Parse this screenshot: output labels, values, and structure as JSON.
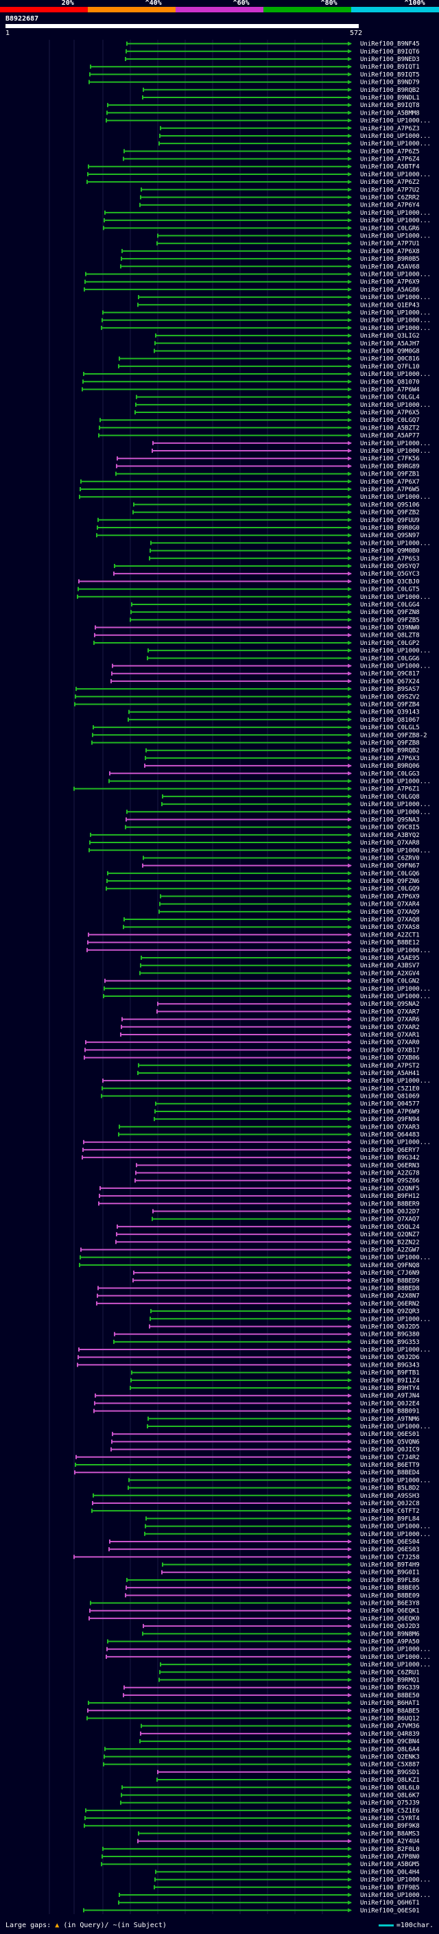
{
  "legend": {
    "labels": [
      "20%",
      "^40%",
      "^60%",
      "^80%",
      "^100%"
    ],
    "colors": [
      "#ff0000",
      "#ff8800",
      "#cc33cc",
      "#00aa00",
      "#00c8e0"
    ]
  },
  "query": {
    "id": "B8922687",
    "start": "1",
    "end": "572"
  },
  "hits": [
    {
      "label": "UniRef100_B9NF45",
      "color": "green"
    },
    {
      "label": "UniRef100_B9IQT6",
      "color": "green"
    },
    {
      "label": "UniRef100_B9NED3",
      "color": "green"
    },
    {
      "label": "UniRef100_B9IQT1",
      "color": "green"
    },
    {
      "label": "UniRef100_B9IQT5",
      "color": "green"
    },
    {
      "label": "UniRef100_B9ND79",
      "color": "green"
    },
    {
      "label": "UniRef100_B9RQB2",
      "color": "green"
    },
    {
      "label": "UniRef100_B9NDL1",
      "color": "green"
    },
    {
      "label": "UniRef100_B9IQT8",
      "color": "green"
    },
    {
      "label": "UniRef100_A5BMM8",
      "color": "green"
    },
    {
      "label": "UniRef100_UP1000...",
      "color": "green"
    },
    {
      "label": "UniRef100_A7P6Z3",
      "color": "green"
    },
    {
      "label": "UniRef100_UP1000...",
      "color": "green"
    },
    {
      "label": "UniRef100_UP1000...",
      "color": "green"
    },
    {
      "label": "UniRef100_A7P6Z5",
      "color": "green"
    },
    {
      "label": "UniRef100_A7P6Z4",
      "color": "green"
    },
    {
      "label": "UniRef100_A5BTF4",
      "color": "green"
    },
    {
      "label": "UniRef100_UP1000...",
      "color": "green"
    },
    {
      "label": "UniRef100_A7P6Z2",
      "color": "green"
    },
    {
      "label": "UniRef100_A7P7U2",
      "color": "green"
    },
    {
      "label": "UniRef100_C6ZRR2",
      "color": "green"
    },
    {
      "label": "UniRef100_A7P6Y4",
      "color": "green"
    },
    {
      "label": "UniRef100_UP1000...",
      "color": "green"
    },
    {
      "label": "UniRef100_UP1000...",
      "color": "green"
    },
    {
      "label": "UniRef100_C0LGR6",
      "color": "green"
    },
    {
      "label": "UniRef100_UP1000...",
      "color": "green"
    },
    {
      "label": "UniRef100_A7P7U1",
      "color": "green"
    },
    {
      "label": "UniRef100_A7P6X8",
      "color": "green"
    },
    {
      "label": "UniRef100_B9R0B5",
      "color": "green"
    },
    {
      "label": "UniRef100_A5AV68",
      "color": "green"
    },
    {
      "label": "UniRef100_UP1000...",
      "color": "green"
    },
    {
      "label": "UniRef100_A7P6X9",
      "color": "green"
    },
    {
      "label": "UniRef100_A5AG86",
      "color": "green"
    },
    {
      "label": "UniRef100_UP1000...",
      "color": "green"
    },
    {
      "label": "UniRef100_Q1EP43",
      "color": "green"
    },
    {
      "label": "UniRef100_UP1000...",
      "color": "green"
    },
    {
      "label": "UniRef100_UP1000...",
      "color": "green"
    },
    {
      "label": "UniRef100_UP1000...",
      "color": "green"
    },
    {
      "label": "UniRef100_Q3LIG2",
      "color": "green"
    },
    {
      "label": "UniRef100_A5AJH7",
      "color": "green"
    },
    {
      "label": "UniRef100_Q9M0G8",
      "color": "green"
    },
    {
      "label": "UniRef100_Q0C816",
      "color": "green"
    },
    {
      "label": "UniRef100_Q7FL10",
      "color": "green"
    },
    {
      "label": "UniRef100_UP1000...",
      "color": "green"
    },
    {
      "label": "UniRef100_Q81070",
      "color": "green"
    },
    {
      "label": "UniRef100_A7P6W4",
      "color": "green"
    },
    {
      "label": "UniRef100_C0LGL4",
      "color": "green"
    },
    {
      "label": "UniRef100_UP1000...",
      "color": "green"
    },
    {
      "label": "UniRef100_A7P6X5",
      "color": "green"
    },
    {
      "label": "UniRef100_C0LGQ7",
      "color": "green"
    },
    {
      "label": "UniRef100_A5BZT2",
      "color": "green"
    },
    {
      "label": "UniRef100_A5AP77",
      "color": "green"
    },
    {
      "label": "UniRef100_UP1000...",
      "color": "magenta"
    },
    {
      "label": "UniRef100_UP1000...",
      "color": "magenta"
    },
    {
      "label": "UniRef100_C7FK56",
      "color": "magenta"
    },
    {
      "label": "UniRef100_B9RG89",
      "color": "magenta"
    },
    {
      "label": "UniRef100_Q9FZB1",
      "color": "green"
    },
    {
      "label": "UniRef100_A7P6X7",
      "color": "green"
    },
    {
      "label": "UniRef100_A7P6W5",
      "color": "green"
    },
    {
      "label": "UniRef100_UP1000...",
      "color": "green"
    },
    {
      "label": "UniRef100_Q9S106",
      "color": "green"
    },
    {
      "label": "UniRef100_Q9FZB2",
      "color": "green"
    },
    {
      "label": "UniRef100_Q9FUU9",
      "color": "green"
    },
    {
      "label": "UniRef100_B9R0G0",
      "color": "green"
    },
    {
      "label": "UniRef100_Q9SN97",
      "color": "green"
    },
    {
      "label": "UniRef100_UP1000...",
      "color": "green"
    },
    {
      "label": "UniRef100_Q9M0B0",
      "color": "green"
    },
    {
      "label": "UniRef100_A7P6S3",
      "color": "green"
    },
    {
      "label": "UniRef100_Q9SYQ7",
      "color": "green"
    },
    {
      "label": "UniRef100_Q5GYC3",
      "color": "magenta"
    },
    {
      "label": "UniRef100_Q3CBJ0",
      "color": "magenta"
    },
    {
      "label": "UniRef100_C0LGT5",
      "color": "green"
    },
    {
      "label": "UniRef100_UP1000...",
      "color": "green"
    },
    {
      "label": "UniRef100_C0LGG4",
      "color": "green"
    },
    {
      "label": "UniRef100_Q9FZN8",
      "color": "green"
    },
    {
      "label": "UniRef100_Q9FZB5",
      "color": "green"
    },
    {
      "label": "UniRef100_Q39NW0",
      "color": "magenta"
    },
    {
      "label": "UniRef100_Q8LZT8",
      "color": "magenta"
    },
    {
      "label": "UniRef100_C0LGP2",
      "color": "green"
    },
    {
      "label": "UniRef100_UP1000...",
      "color": "green"
    },
    {
      "label": "UniRef100_C0LGG6",
      "color": "green"
    },
    {
      "label": "UniRef100_UP1000...",
      "color": "magenta"
    },
    {
      "label": "UniRef100_Q9C817",
      "color": "magenta"
    },
    {
      "label": "UniRef100_Q67X24",
      "color": "magenta"
    },
    {
      "label": "UniRef100_B9SAS7",
      "color": "green"
    },
    {
      "label": "UniRef100_Q9SZV2",
      "color": "green"
    },
    {
      "label": "UniRef100_Q9FZB4",
      "color": "green"
    },
    {
      "label": "UniRef100_Q39143",
      "color": "green"
    },
    {
      "label": "UniRef100_Q81067",
      "color": "green"
    },
    {
      "label": "UniRef100_C0LGL5",
      "color": "green"
    },
    {
      "label": "UniRef100_Q9FZB8-2",
      "color": "green"
    },
    {
      "label": "UniRef100_Q9FZB8",
      "color": "green"
    },
    {
      "label": "UniRef100_B9RQB2",
      "color": "green"
    },
    {
      "label": "UniRef100_A7P6X3",
      "color": "green"
    },
    {
      "label": "UniRef100_B9RQ06",
      "color": "magenta"
    },
    {
      "label": "UniRef100_C0LGG3",
      "color": "magenta"
    },
    {
      "label": "UniRef100_UP1000...",
      "color": "green"
    },
    {
      "label": "UniRef100_A7P6Z1",
      "color": "green"
    },
    {
      "label": "UniRef100_C0LGQ8",
      "color": "green"
    },
    {
      "label": "UniRef100_UP1000...",
      "color": "green"
    },
    {
      "label": "UniRef100_UP1000...",
      "color": "green"
    },
    {
      "label": "UniRef100_Q9SNA3",
      "color": "magenta"
    },
    {
      "label": "UniRef100_Q9C8I5",
      "color": "green"
    },
    {
      "label": "UniRef100_A3BYQ2",
      "color": "green"
    },
    {
      "label": "UniRef100_Q7XAR8",
      "color": "green"
    },
    {
      "label": "UniRef100_UP1000...",
      "color": "green"
    },
    {
      "label": "UniRef100_C6ZRV0",
      "color": "green"
    },
    {
      "label": "UniRef100_Q9FN67",
      "color": "magenta"
    },
    {
      "label": "UniRef100_C0LGQ6",
      "color": "green"
    },
    {
      "label": "UniRef100_Q9FZN6",
      "color": "green"
    },
    {
      "label": "UniRef100_C0LGQ9",
      "color": "green"
    },
    {
      "label": "UniRef100_A7P6X9",
      "color": "green"
    },
    {
      "label": "UniRef100_Q7XAR4",
      "color": "green"
    },
    {
      "label": "UniRef100_Q7XAQ9",
      "color": "green"
    },
    {
      "label": "UniRef100_Q7XAQ8",
      "color": "green"
    },
    {
      "label": "UniRef100_Q7XAS8",
      "color": "green"
    },
    {
      "label": "UniRef100_A2ZCT1",
      "color": "magenta"
    },
    {
      "label": "UniRef100_B8BE12",
      "color": "magenta"
    },
    {
      "label": "UniRef100_UP1000...",
      "color": "magenta"
    },
    {
      "label": "UniRef100_A5AE95",
      "color": "green"
    },
    {
      "label": "UniRef100_A3BSV7",
      "color": "green"
    },
    {
      "label": "UniRef100_A2XGV4",
      "color": "green"
    },
    {
      "label": "UniRef100_C0LGN2",
      "color": "magenta"
    },
    {
      "label": "UniRef100_UP1000...",
      "color": "green"
    },
    {
      "label": "UniRef100_UP1000...",
      "color": "green"
    },
    {
      "label": "UniRef100_Q9SNA2",
      "color": "magenta"
    },
    {
      "label": "UniRef100_Q7XAR7",
      "color": "magenta"
    },
    {
      "label": "UniRef100_Q7XAR6",
      "color": "magenta"
    },
    {
      "label": "UniRef100_Q7XAR2",
      "color": "magenta"
    },
    {
      "label": "UniRef100_Q7XAR1",
      "color": "magenta"
    },
    {
      "label": "UniRef100_Q7XAR0",
      "color": "magenta"
    },
    {
      "label": "UniRef100_Q7XB17",
      "color": "magenta"
    },
    {
      "label": "UniRef100_Q7XB06",
      "color": "magenta"
    },
    {
      "label": "UniRef100_A7PST2",
      "color": "green"
    },
    {
      "label": "UniRef100_A5AH41",
      "color": "green"
    },
    {
      "label": "UniRef100_UP1000...",
      "color": "magenta"
    },
    {
      "label": "UniRef100_C5Z1E0",
      "color": "green"
    },
    {
      "label": "UniRef100_Q81069",
      "color": "green"
    },
    {
      "label": "UniRef100_Q04577",
      "color": "green"
    },
    {
      "label": "UniRef100_A7P6W9",
      "color": "green"
    },
    {
      "label": "UniRef100_Q9FN94",
      "color": "green"
    },
    {
      "label": "UniRef100_Q7XAR3",
      "color": "green"
    },
    {
      "label": "UniRef100_Q64483",
      "color": "green"
    },
    {
      "label": "UniRef100_UP1000...",
      "color": "magenta"
    },
    {
      "label": "UniRef100_Q6ERY7",
      "color": "magenta"
    },
    {
      "label": "UniRef100_B9G342",
      "color": "magenta"
    },
    {
      "label": "UniRef100_Q6ERN3",
      "color": "magenta"
    },
    {
      "label": "UniRef100_A2ZG78",
      "color": "magenta"
    },
    {
      "label": "UniRef100_Q9SZ66",
      "color": "magenta"
    },
    {
      "label": "UniRef100_Q2QNF5",
      "color": "magenta"
    },
    {
      "label": "UniRef100_B9FH12",
      "color": "magenta"
    },
    {
      "label": "UniRef100_B8BER9",
      "color": "magenta"
    },
    {
      "label": "UniRef100_Q0J2D7",
      "color": "magenta"
    },
    {
      "label": "UniRef100_Q7XAQ7",
      "color": "green"
    },
    {
      "label": "UniRef100_Q5QL24",
      "color": "magenta"
    },
    {
      "label": "UniRef100_Q2QNZ7",
      "color": "magenta"
    },
    {
      "label": "UniRef100_B2ZN22",
      "color": "magenta"
    },
    {
      "label": "UniRef100_A2ZGW7",
      "color": "magenta"
    },
    {
      "label": "UniRef100_UP1000...",
      "color": "green"
    },
    {
      "label": "UniRef100_Q9FNQ8",
      "color": "green"
    },
    {
      "label": "UniRef100_C7J6N9",
      "color": "magenta"
    },
    {
      "label": "UniRef100_B8BED9",
      "color": "magenta"
    },
    {
      "label": "UniRef100_B8BED8",
      "color": "magenta"
    },
    {
      "label": "UniRef100_A2X8N7",
      "color": "magenta"
    },
    {
      "label": "UniRef100_Q6ERN2",
      "color": "magenta"
    },
    {
      "label": "UniRef100_Q9ZQR3",
      "color": "green"
    },
    {
      "label": "UniRef100_UP1000...",
      "color": "green"
    },
    {
      "label": "UniRef100_Q0J2D5",
      "color": "magenta"
    },
    {
      "label": "UniRef100_B9G380",
      "color": "magenta"
    },
    {
      "label": "UniRef100_B9G353",
      "color": "green"
    },
    {
      "label": "UniRef100_UP1000...",
      "color": "magenta"
    },
    {
      "label": "UniRef100_Q0J2D6",
      "color": "magenta"
    },
    {
      "label": "UniRef100_B9G343",
      "color": "magenta"
    },
    {
      "label": "UniRef100_B9FTB1",
      "color": "green"
    },
    {
      "label": "UniRef100_B9I1Z4",
      "color": "green"
    },
    {
      "label": "UniRef100_B9HTY4",
      "color": "green"
    },
    {
      "label": "UniRef100_A9TJN4",
      "color": "magenta"
    },
    {
      "label": "UniRef100_Q0J2E4",
      "color": "magenta"
    },
    {
      "label": "UniRef100_B8B091",
      "color": "magenta"
    },
    {
      "label": "UniRef100_A9TNM6",
      "color": "green"
    },
    {
      "label": "UniRef100_UP1000...",
      "color": "green"
    },
    {
      "label": "UniRef100_Q6ES01",
      "color": "magenta"
    },
    {
      "label": "UniRef100_Q5VQN6",
      "color": "magenta"
    },
    {
      "label": "UniRef100_Q0JIC9",
      "color": "magenta"
    },
    {
      "label": "UniRef100_C7J4R2",
      "color": "magenta"
    },
    {
      "label": "UniRef100_B6ETT9",
      "color": "green"
    },
    {
      "label": "UniRef100_B8BED4",
      "color": "magenta"
    },
    {
      "label": "UniRef100_UP1000...",
      "color": "green"
    },
    {
      "label": "UniRef100_B5L8D2",
      "color": "green"
    },
    {
      "label": "UniRef100_A9SSH3",
      "color": "green"
    },
    {
      "label": "UniRef100_Q0J2C8",
      "color": "magenta"
    },
    {
      "label": "UniRef100_C6TFT2",
      "color": "green"
    },
    {
      "label": "UniRef100_B9FL84",
      "color": "green"
    },
    {
      "label": "UniRef100_UP1000...",
      "color": "green"
    },
    {
      "label": "UniRef100_UP1000...",
      "color": "green"
    },
    {
      "label": "UniRef100_Q6ES04",
      "color": "magenta"
    },
    {
      "label": "UniRef100_Q6ES03",
      "color": "magenta"
    },
    {
      "label": "UniRef100_C7J258",
      "color": "magenta"
    },
    {
      "label": "UniRef100_B9T4H9",
      "color": "green"
    },
    {
      "label": "UniRef100_B9G0I1",
      "color": "magenta"
    },
    {
      "label": "UniRef100_B9FL86",
      "color": "green"
    },
    {
      "label": "UniRef100_B8BE05",
      "color": "magenta"
    },
    {
      "label": "UniRef100_B8BE09",
      "color": "magenta"
    },
    {
      "label": "UniRef100_B6E3Y8",
      "color": "green"
    },
    {
      "label": "UniRef100_Q6EQK1",
      "color": "magenta"
    },
    {
      "label": "UniRef100_Q6EQK0",
      "color": "magenta"
    },
    {
      "label": "UniRef100_Q0J2D3",
      "color": "magenta"
    },
    {
      "label": "UniRef100_B9N8M6",
      "color": "green"
    },
    {
      "label": "UniRef100_A9PA50",
      "color": "green"
    },
    {
      "label": "UniRef100_UP1000...",
      "color": "magenta"
    },
    {
      "label": "UniRef100_UP1000...",
      "color": "magenta"
    },
    {
      "label": "UniRef100_UP1000...",
      "color": "green"
    },
    {
      "label": "UniRef100_C6ZRU1",
      "color": "green"
    },
    {
      "label": "UniRef100_B9RMQ1",
      "color": "green"
    },
    {
      "label": "UniRef100_B9G339",
      "color": "magenta"
    },
    {
      "label": "UniRef100_B8BE50",
      "color": "magenta"
    },
    {
      "label": "UniRef100_B6HAT1",
      "color": "green"
    },
    {
      "label": "UniRef100_B8ABE5",
      "color": "magenta"
    },
    {
      "label": "UniRef100_B6UQ12",
      "color": "green"
    },
    {
      "label": "UniRef100_A7VM36",
      "color": "green"
    },
    {
      "label": "UniRef100_Q4R839",
      "color": "magenta"
    },
    {
      "label": "UniRef100_Q9CBN4",
      "color": "green"
    },
    {
      "label": "UniRef100_Q8L6A4",
      "color": "green"
    },
    {
      "label": "UniRef100_Q2ENK3",
      "color": "green"
    },
    {
      "label": "UniRef100_C5X887",
      "color": "green"
    },
    {
      "label": "UniRef100_B9GSD1",
      "color": "magenta"
    },
    {
      "label": "UniRef100_Q8LKZ1",
      "color": "green"
    },
    {
      "label": "UniRef100_Q8L6L0",
      "color": "green"
    },
    {
      "label": "UniRef100_Q8L6K7",
      "color": "green"
    },
    {
      "label": "UniRef100_Q75J39",
      "color": "green"
    },
    {
      "label": "UniRef100_C5Z1E6",
      "color": "green"
    },
    {
      "label": "UniRef100_C5YRT4",
      "color": "green"
    },
    {
      "label": "UniRef100_B9F9K8",
      "color": "green"
    },
    {
      "label": "UniRef100_B8AMS3",
      "color": "green"
    },
    {
      "label": "UniRef100_A2Y4U4",
      "color": "magenta"
    },
    {
      "label": "UniRef100_B2F0L0",
      "color": "green"
    },
    {
      "label": "UniRef100_A7P8N0",
      "color": "green"
    },
    {
      "label": "UniRef100_A5BGM5",
      "color": "green"
    },
    {
      "label": "UniRef100_Q0L4H4",
      "color": "green"
    },
    {
      "label": "UniRef100_UP1000...",
      "color": "green"
    },
    {
      "label": "UniRef100_B7F9B5",
      "color": "green"
    },
    {
      "label": "UniRef100_UP1000...",
      "color": "green"
    },
    {
      "label": "UniRef100_Q6H6T1",
      "color": "green"
    },
    {
      "label": "UniRef100_Q6ES01",
      "color": "green"
    }
  ],
  "footer": {
    "left": "Large gaps:",
    "in_query": "(in Query)/",
    "in_subject": "~(in Subject)",
    "scale": "=100char."
  }
}
